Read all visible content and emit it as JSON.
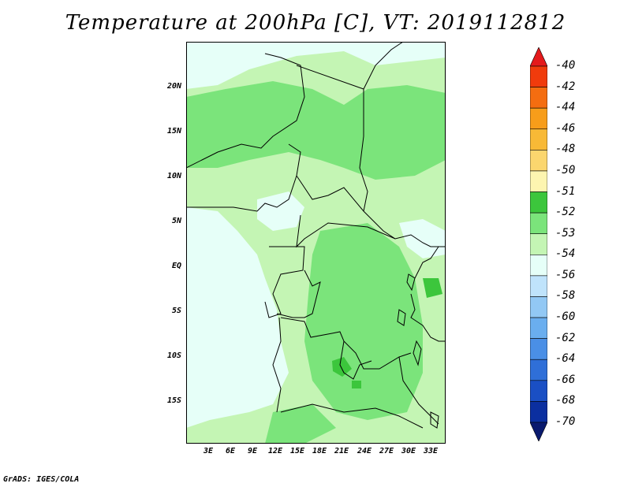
{
  "title": "Temperature at 200hPa [C], VT: 2019112812",
  "credit": "GrADS: IGES/COLA",
  "y_axis_labels": [
    "20N",
    "15N",
    "10N",
    "5N",
    "EQ",
    "5S",
    "10S",
    "15S"
  ],
  "x_axis_labels": [
    "3E",
    "6E",
    "9E",
    "12E",
    "15E",
    "18E",
    "21E",
    "24E",
    "27E",
    "30E",
    "33E"
  ],
  "colorbar": {
    "labels": [
      "-40",
      "-42",
      "-44",
      "-46",
      "-48",
      "-50",
      "-51",
      "-52",
      "-53",
      "-54",
      "-56",
      "-58",
      "-60",
      "-62",
      "-64",
      "-66",
      "-68",
      "-70"
    ],
    "colors": [
      "#e41a1c",
      "#f03b0c",
      "#f46d10",
      "#f79d1a",
      "#f8b936",
      "#fbd66e",
      "#fdf5b0",
      "#3cc63c",
      "#7be47b",
      "#c4f5b4",
      "#e6fff8",
      "#bfe3fb",
      "#92c8f4",
      "#6aaeef",
      "#4a8fe6",
      "#2f6fd8",
      "#1a4fc4",
      "#0b2fa0",
      "#0a1a6e"
    ]
  },
  "colors": {
    "land_light": "#c4f5b4",
    "land_mid": "#7be47b",
    "land_dark": "#3cc63c",
    "cold": "#e6fff8"
  }
}
